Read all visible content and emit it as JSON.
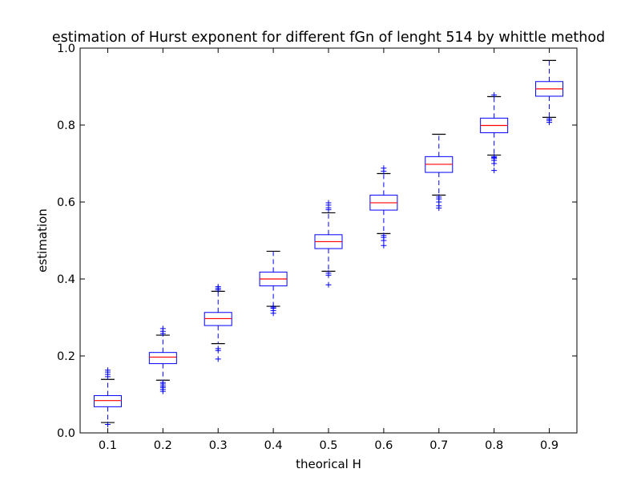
{
  "chart_data": {
    "type": "box",
    "title": "estimation of Hurst exponent for different fGn of lenght 514 by whittle method",
    "xlabel": "theorical H",
    "ylabel": "estimation",
    "ylim": [
      0.0,
      1.0
    ],
    "y_ticks": [
      "0.0",
      "0.2",
      "0.4",
      "0.6",
      "0.8",
      "1.0"
    ],
    "categories": [
      "0.1",
      "0.2",
      "0.3",
      "0.4",
      "0.5",
      "0.6",
      "0.7",
      "0.8",
      "0.9"
    ],
    "grid": false,
    "box_color": "#0000ff",
    "median_color": "#ff0000",
    "boxes": [
      {
        "label": "0.1",
        "whisker_low": 0.027,
        "q1": 0.068,
        "median": 0.084,
        "q3": 0.097,
        "whisker_high": 0.139,
        "outliers": [
          0.022,
          0.146,
          0.152,
          0.158,
          0.163
        ]
      },
      {
        "label": "0.2",
        "whisker_low": 0.137,
        "q1": 0.18,
        "median": 0.197,
        "q3": 0.209,
        "whisker_high": 0.254,
        "outliers": [
          0.108,
          0.113,
          0.118,
          0.122,
          0.127,
          0.131,
          0.258,
          0.264,
          0.271
        ]
      },
      {
        "label": "0.3",
        "whisker_low": 0.232,
        "q1": 0.279,
        "median": 0.297,
        "q3": 0.313,
        "whisker_high": 0.368,
        "outliers": [
          0.192,
          0.214,
          0.219,
          0.372,
          0.376,
          0.38
        ]
      },
      {
        "label": "0.4",
        "whisker_low": 0.329,
        "q1": 0.382,
        "median": 0.4,
        "q3": 0.418,
        "whisker_high": 0.472,
        "outliers": [
          0.311,
          0.318,
          0.324,
          0.327
        ]
      },
      {
        "label": "0.5",
        "whisker_low": 0.42,
        "q1": 0.479,
        "median": 0.497,
        "q3": 0.515,
        "whisker_high": 0.572,
        "outliers": [
          0.385,
          0.41,
          0.415,
          0.58,
          0.585,
          0.592,
          0.598
        ]
      },
      {
        "label": "0.6",
        "whisker_low": 0.518,
        "q1": 0.579,
        "median": 0.598,
        "q3": 0.618,
        "whisker_high": 0.674,
        "outliers": [
          0.487,
          0.5,
          0.508,
          0.513,
          0.68,
          0.688
        ]
      },
      {
        "label": "0.7",
        "whisker_low": 0.618,
        "q1": 0.677,
        "median": 0.698,
        "q3": 0.718,
        "whisker_high": 0.776,
        "outliers": [
          0.584,
          0.59,
          0.6,
          0.608,
          0.613
        ]
      },
      {
        "label": "0.8",
        "whisker_low": 0.722,
        "q1": 0.78,
        "median": 0.799,
        "q3": 0.818,
        "whisker_high": 0.874,
        "outliers": [
          0.682,
          0.7,
          0.708,
          0.713,
          0.716,
          0.718,
          0.878
        ]
      },
      {
        "label": "0.9",
        "whisker_low": 0.82,
        "q1": 0.875,
        "median": 0.894,
        "q3": 0.913,
        "whisker_high": 0.968,
        "outliers": [
          0.807,
          0.812,
          0.816
        ]
      }
    ]
  }
}
